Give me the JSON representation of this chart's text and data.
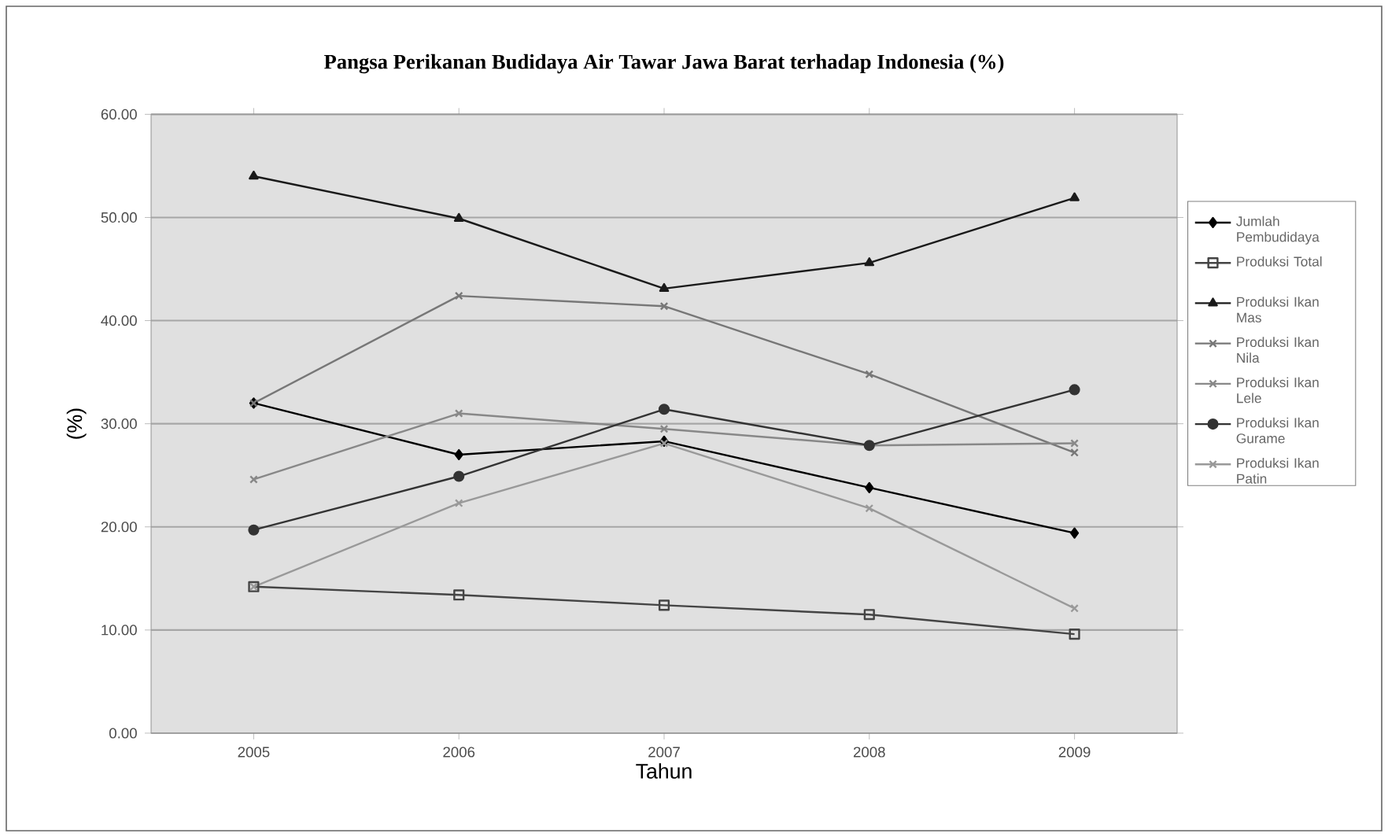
{
  "chart_data": {
    "type": "line",
    "title": "Pangsa Perikanan Budidaya Air Tawar Jawa Barat terhadap Indonesia (%)",
    "xlabel": "Tahun",
    "ylabel": "(%)",
    "categories": [
      "2005",
      "2006",
      "2007",
      "2008",
      "2009"
    ],
    "ylim": [
      0,
      60
    ],
    "yticks": [
      {
        "value": 0,
        "label": "0.00"
      },
      {
        "value": 10,
        "label": "10.00"
      },
      {
        "value": 20,
        "label": "20.00"
      },
      {
        "value": 30,
        "label": "30.00"
      },
      {
        "value": 40,
        "label": "40.00"
      },
      {
        "value": 50,
        "label": "50.00"
      },
      {
        "value": 60,
        "label": "60.00"
      }
    ],
    "grid": "y",
    "legend": "right",
    "series": [
      {
        "name": "Jumlah Pembudidaya",
        "color": "#000000",
        "marker": "diamond",
        "values": [
          32.0,
          27.0,
          28.3,
          23.8,
          19.4
        ]
      },
      {
        "name": "Produksi Total",
        "color": "#444444",
        "marker": "square",
        "values": [
          14.2,
          13.4,
          12.4,
          11.5,
          9.6
        ]
      },
      {
        "name": "Produksi Ikan Mas",
        "color": "#1a1a1a",
        "marker": "triangle",
        "values": [
          54.0,
          49.9,
          43.1,
          45.6,
          51.9
        ]
      },
      {
        "name": "Produksi Ikan Nila",
        "color": "#777777",
        "marker": "cross",
        "values": [
          32.0,
          42.4,
          41.4,
          34.8,
          27.2
        ]
      },
      {
        "name": "Produksi Ikan Lele",
        "color": "#888888",
        "marker": "cross",
        "values": [
          24.6,
          31.0,
          29.5,
          27.9,
          28.1
        ]
      },
      {
        "name": "Produksi Ikan Gurame",
        "color": "#333333",
        "marker": "circle",
        "values": [
          19.7,
          24.9,
          31.4,
          27.9,
          33.3
        ]
      },
      {
        "name": "Produksi Ikan Patin",
        "color": "#999999",
        "marker": "cross",
        "values": [
          14.2,
          22.3,
          28.1,
          21.8,
          12.1
        ]
      }
    ]
  }
}
